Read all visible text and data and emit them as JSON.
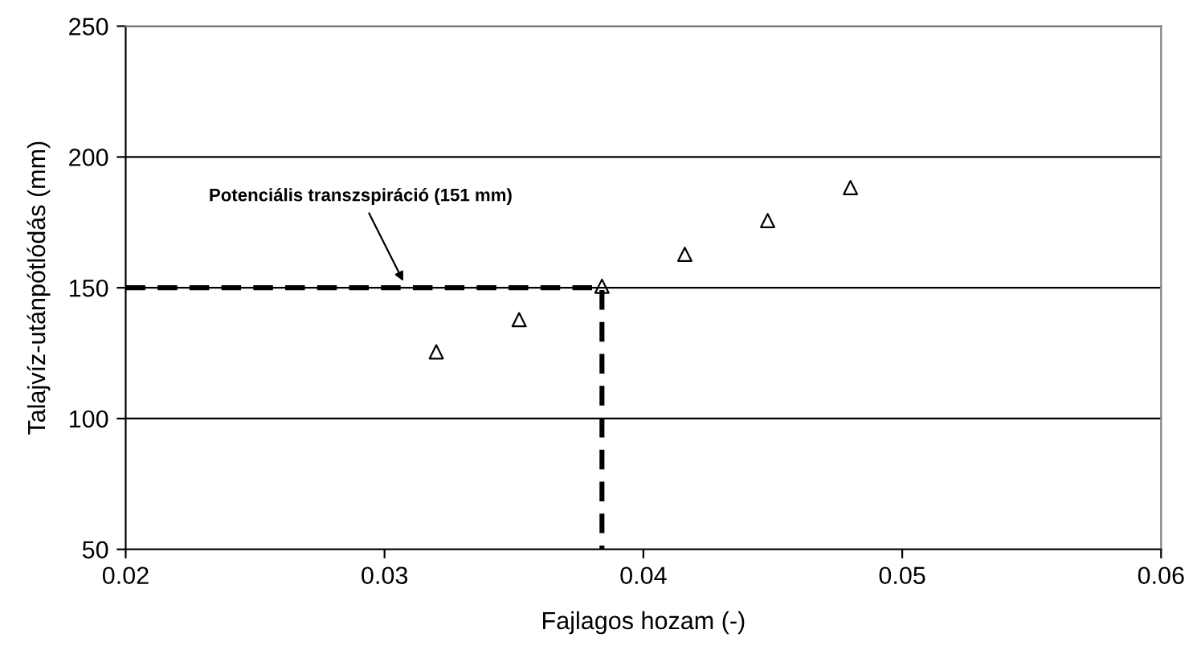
{
  "chart_data": {
    "type": "scatter",
    "xlabel": "Fajlagos hozam (-)",
    "ylabel": "Talajvíz-utánpótlódás (mm)",
    "xlim": [
      0.02,
      0.06
    ],
    "xticks": [
      0.02,
      0.03,
      0.04,
      0.05,
      0.06
    ],
    "ylim": [
      50,
      250
    ],
    "yticks": [
      50,
      100,
      150,
      200,
      250
    ],
    "grid": "y",
    "legend": false,
    "series": [
      {
        "marker": "triangle",
        "color": "#000000",
        "x": [
          0.032,
          0.0352,
          0.0384,
          0.0416,
          0.0448,
          0.048
        ],
        "values": [
          125.5,
          137.8,
          150.6,
          162.8,
          175.7,
          188.3
        ]
      },
      {
        "type": "line",
        "line_style": "dashed",
        "marker": "none",
        "color": "#000000",
        "x": [
          0.02,
          0.0384,
          0.0384
        ],
        "values": [
          150,
          150,
          50
        ]
      }
    ],
    "annotations": [
      {
        "text": "Potenciális transzspiráció (151 mm)",
        "x": 0.0308,
        "y": 151
      }
    ]
  }
}
